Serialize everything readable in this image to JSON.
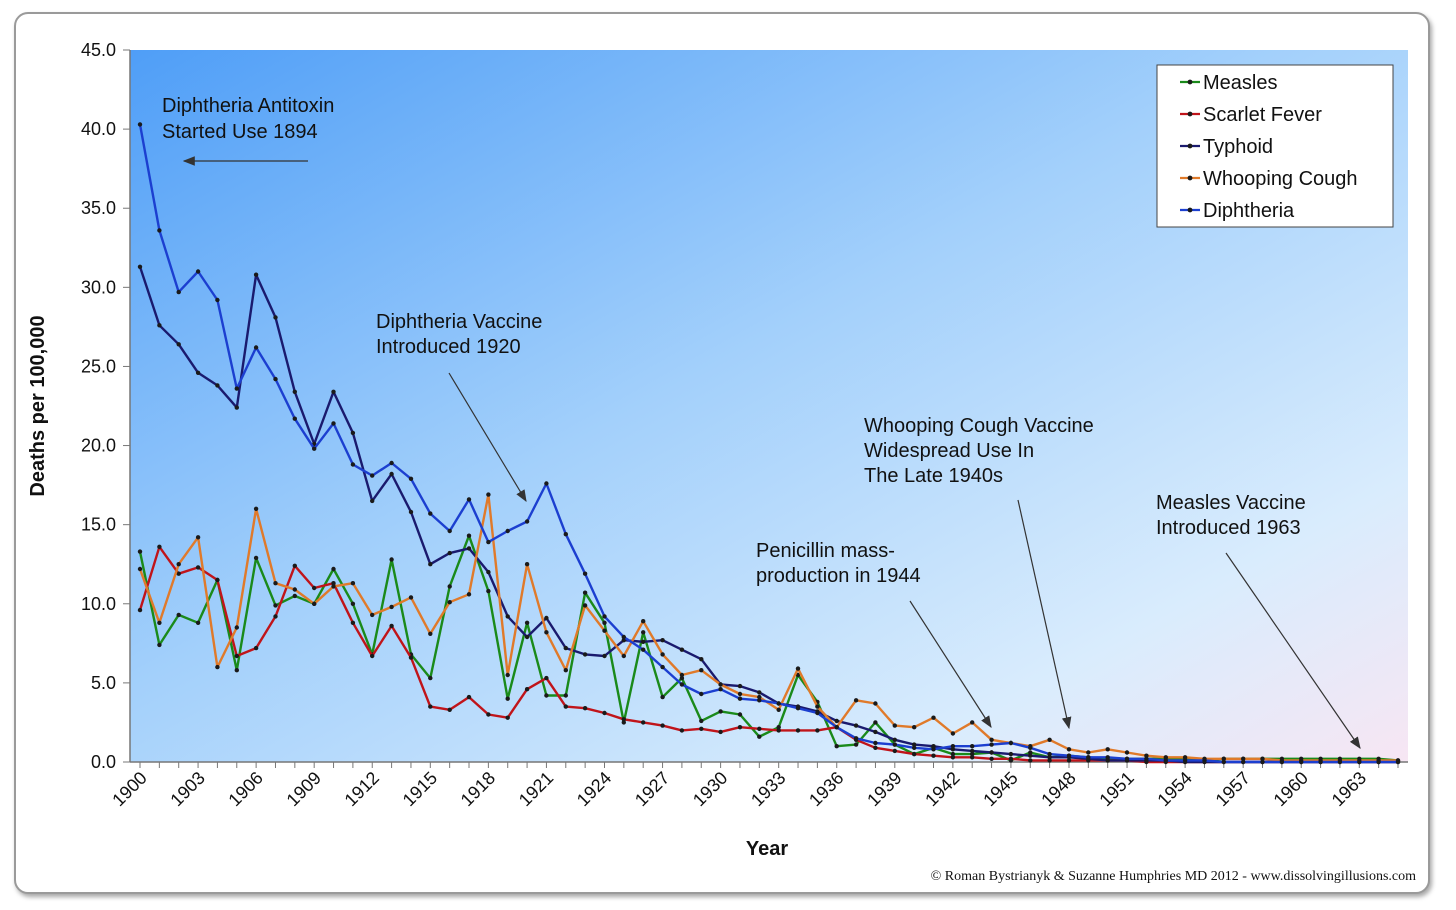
{
  "chart_data": {
    "type": "line",
    "xlabel": "Year",
    "ylabel": "Deaths per 100,000",
    "ylim": [
      0,
      45
    ],
    "ytick_labels": [
      "0.0",
      "5.0",
      "10.0",
      "15.0",
      "20.0",
      "25.0",
      "30.0",
      "35.0",
      "40.0",
      "45.0"
    ],
    "xlim": [
      1900,
      1965
    ],
    "xtick_labels": [
      "1900",
      "1903",
      "1906",
      "1909",
      "1912",
      "1915",
      "1918",
      "1921",
      "1924",
      "1927",
      "1930",
      "1933",
      "1936",
      "1939",
      "1942",
      "1945",
      "1948",
      "1951",
      "1954",
      "1957",
      "1960",
      "1963"
    ],
    "x": [
      1900,
      1901,
      1902,
      1903,
      1904,
      1905,
      1906,
      1907,
      1908,
      1909,
      1910,
      1911,
      1912,
      1913,
      1914,
      1915,
      1916,
      1917,
      1918,
      1919,
      1920,
      1921,
      1922,
      1923,
      1924,
      1925,
      1926,
      1927,
      1928,
      1929,
      1930,
      1931,
      1932,
      1933,
      1934,
      1935,
      1936,
      1937,
      1938,
      1939,
      1940,
      1941,
      1942,
      1943,
      1944,
      1945,
      1946,
      1947,
      1948,
      1949,
      1950,
      1951,
      1952,
      1953,
      1954,
      1955,
      1956,
      1957,
      1958,
      1959,
      1960,
      1961,
      1962,
      1963,
      1964,
      1965
    ],
    "series": [
      {
        "name": "Measles",
        "color": "#1a8a1a",
        "values": [
          13.3,
          7.4,
          9.3,
          8.8,
          11.5,
          5.8,
          12.9,
          9.9,
          10.5,
          10.0,
          12.2,
          10.0,
          6.8,
          12.8,
          6.8,
          5.3,
          11.1,
          14.3,
          10.8,
          4.0,
          8.8,
          4.2,
          4.2,
          10.7,
          8.8,
          2.5,
          8.2,
          4.1,
          5.3,
          2.6,
          3.2,
          3.0,
          1.6,
          2.2,
          5.5,
          3.8,
          1.0,
          1.1,
          2.5,
          1.1,
          0.5,
          0.9,
          0.5,
          0.5,
          0.6,
          0.1,
          0.6,
          0.3,
          0.4,
          0.3,
          0.2,
          0.2,
          0.2,
          0.2,
          0.2,
          0.1,
          0.2,
          0.2,
          0.2,
          0.2,
          0.2,
          0.2,
          0.2,
          0.2,
          0.2,
          0.1
        ]
      },
      {
        "name": "Scarlet Fever",
        "color": "#c0141a",
        "values": [
          9.6,
          13.6,
          11.9,
          12.3,
          11.5,
          6.7,
          7.2,
          9.2,
          12.4,
          11.0,
          11.3,
          8.8,
          6.7,
          8.6,
          6.6,
          3.5,
          3.3,
          4.1,
          3.0,
          2.8,
          4.6,
          5.3,
          3.5,
          3.4,
          3.1,
          2.7,
          2.5,
          2.3,
          2.0,
          2.1,
          1.9,
          2.2,
          2.1,
          2.0,
          2.0,
          2.0,
          2.2,
          1.4,
          0.9,
          0.7,
          0.5,
          0.4,
          0.3,
          0.3,
          0.2,
          0.2,
          0.1,
          0.1,
          0.1,
          0.1,
          0.1,
          0.1,
          0.0,
          0.0,
          0.0,
          0.0,
          0.0,
          0.0,
          0.0,
          0.0,
          0.0,
          0.0,
          0.0,
          0.0,
          0.0,
          0.0
        ]
      },
      {
        "name": "Typhoid",
        "color": "#1a1a6e",
        "values": [
          31.3,
          27.6,
          26.4,
          24.6,
          23.8,
          22.4,
          30.8,
          28.1,
          23.4,
          20.1,
          23.4,
          20.8,
          16.5,
          18.2,
          15.8,
          12.5,
          13.2,
          13.5,
          12.0,
          9.2,
          7.9,
          9.1,
          7.2,
          6.8,
          6.7,
          7.7,
          7.6,
          7.7,
          7.1,
          6.5,
          4.9,
          4.8,
          4.4,
          3.7,
          3.5,
          3.2,
          2.6,
          2.3,
          1.9,
          1.4,
          1.1,
          1.0,
          0.8,
          0.7,
          0.6,
          0.5,
          0.4,
          0.3,
          0.3,
          0.2,
          0.1,
          0.1,
          0.1,
          0.1,
          0.0,
          0.0,
          0.0,
          0.0,
          0.0,
          0.0,
          0.0,
          0.0,
          0.0,
          0.0,
          0.0,
          0.0
        ]
      },
      {
        "name": "Whooping Cough",
        "color": "#e07a2a",
        "values": [
          12.2,
          8.8,
          12.5,
          14.2,
          6.0,
          8.5,
          16.0,
          11.3,
          10.9,
          10.0,
          11.1,
          11.3,
          9.3,
          9.8,
          10.4,
          8.1,
          10.1,
          10.6,
          16.9,
          5.5,
          12.5,
          8.2,
          5.8,
          9.9,
          8.3,
          6.7,
          8.9,
          6.8,
          5.5,
          5.8,
          4.9,
          4.3,
          4.1,
          3.3,
          5.9,
          3.5,
          2.2,
          3.9,
          3.7,
          2.3,
          2.2,
          2.8,
          1.8,
          2.5,
          1.4,
          1.2,
          1.0,
          1.4,
          0.8,
          0.6,
          0.8,
          0.6,
          0.4,
          0.3,
          0.3,
          0.2,
          0.2,
          0.2,
          0.2,
          0.1,
          0.1,
          0.1,
          0.1,
          0.1,
          0.1,
          0.1
        ]
      },
      {
        "name": "Diphtheria",
        "color": "#1c3fd0",
        "values": [
          40.3,
          33.6,
          29.7,
          31.0,
          29.2,
          23.6,
          26.2,
          24.2,
          21.7,
          19.8,
          21.4,
          18.8,
          18.1,
          18.9,
          17.9,
          15.7,
          14.6,
          16.6,
          13.9,
          14.6,
          15.2,
          17.6,
          14.4,
          11.9,
          9.2,
          7.9,
          7.1,
          6.0,
          4.9,
          4.3,
          4.6,
          4.0,
          3.9,
          3.7,
          3.4,
          3.1,
          2.2,
          1.5,
          1.2,
          1.1,
          0.9,
          0.8,
          1.0,
          1.0,
          1.1,
          1.2,
          0.9,
          0.5,
          0.4,
          0.3,
          0.3,
          0.2,
          0.2,
          0.1,
          0.1,
          0.1,
          0.0,
          0.0,
          0.0,
          0.0,
          0.0,
          0.0,
          0.0,
          0.0,
          0.0,
          0.0
        ]
      }
    ],
    "legend_position": "top-right",
    "annotations": [
      {
        "lines": [
          "Diphtheria Antitoxin",
          "Started Use 1894"
        ]
      },
      {
        "lines": [
          "Diphtheria Vaccine",
          "Introduced 1920"
        ]
      },
      {
        "lines": [
          "Whooping Cough Vaccine",
          "Widespread Use In",
          "The Late 1940s"
        ]
      },
      {
        "lines": [
          "Measles Vaccine",
          "Introduced 1963"
        ]
      },
      {
        "lines": [
          "Penicillin mass-",
          "production in 1944"
        ]
      }
    ],
    "credit": "© Roman Bystrianyk & Suzanne Humphries MD 2012 - www.dissolvingillusions.com"
  }
}
